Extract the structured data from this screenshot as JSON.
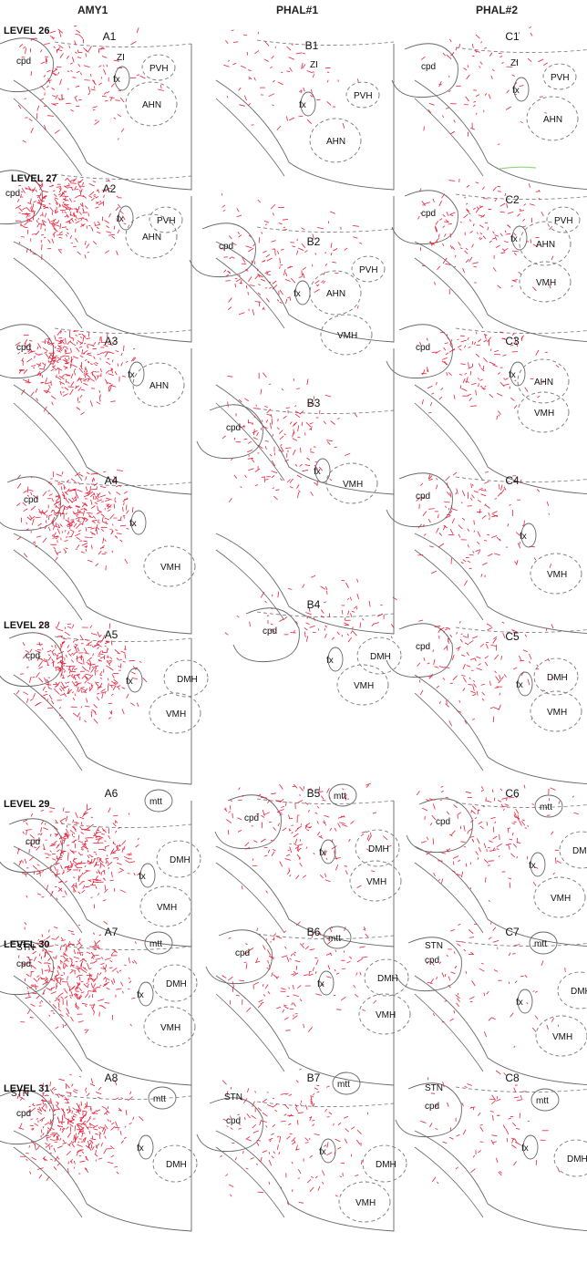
{
  "headers": [
    "AMY1",
    "PHAL#1",
    "PHAL#2"
  ],
  "level_labels": [
    {
      "text": "LEVEL 26",
      "row": 0
    },
    {
      "text": "LEVEL 27",
      "row": 1
    },
    {
      "text": "LEVEL 28",
      "row": 4
    },
    {
      "text": "LEVEL 29",
      "row": 5
    },
    {
      "text": "LEVEL 30",
      "row": 6
    },
    {
      "text": "LEVEL 31",
      "row": 7
    }
  ],
  "colors": {
    "fiber": "#e8203a",
    "outline": "#666666",
    "dashed": "#777777",
    "label": "#111111",
    "artifact": "#8fd67a"
  },
  "panels": [
    {
      "id": "A1",
      "col": 0,
      "row": 0,
      "density": "medium",
      "regions": [
        "cpd",
        "ZI",
        "PVH",
        "fx",
        "AHN"
      ]
    },
    {
      "id": "B1",
      "col": 1,
      "row": 0,
      "density": "low",
      "regions": [
        "ZI",
        "PVH",
        "fx",
        "AHN"
      ]
    },
    {
      "id": "C1",
      "col": 2,
      "row": 0,
      "density": "low",
      "regions": [
        "cpd",
        "ZI",
        "PVH",
        "fx",
        "AHN"
      ]
    },
    {
      "id": "A2",
      "col": 0,
      "row": 1,
      "density": "high",
      "regions": [
        "cpd",
        "fx",
        "PVH",
        "AHN"
      ]
    },
    {
      "id": "B2",
      "col": 1,
      "row": 1,
      "density": "medium",
      "regions": [
        "cpd",
        "PVH",
        "fx",
        "AHN",
        "VMH"
      ]
    },
    {
      "id": "C2",
      "col": 2,
      "row": 1,
      "density": "medium",
      "regions": [
        "cpd",
        "PVH",
        "fx",
        "AHN",
        "VMH"
      ]
    },
    {
      "id": "A3",
      "col": 0,
      "row": 2,
      "density": "high",
      "regions": [
        "cpd",
        "fx",
        "AHN"
      ]
    },
    {
      "id": "B3",
      "col": 1,
      "row": 2,
      "density": "medium",
      "regions": [
        "cpd",
        "fx",
        "VMH"
      ]
    },
    {
      "id": "C3",
      "col": 2,
      "row": 2,
      "density": "medium",
      "regions": [
        "cpd",
        "fx",
        "AHN",
        "VMH"
      ]
    },
    {
      "id": "A4",
      "col": 0,
      "row": 3,
      "density": "high",
      "regions": [
        "cpd",
        "fx",
        "VMH"
      ]
    },
    {
      "id": "B4",
      "col": 1,
      "row": 3,
      "density": "medium",
      "regions": [
        "cpd",
        "fx",
        "DMH",
        "VMH"
      ]
    },
    {
      "id": "C4",
      "col": 2,
      "row": 3,
      "density": "medium",
      "regions": [
        "cpd",
        "fx",
        "VMH"
      ]
    },
    {
      "id": "A5",
      "col": 0,
      "row": 4,
      "density": "high",
      "regions": [
        "cpd",
        "fx",
        "DMH",
        "VMH"
      ]
    },
    {
      "id": "C5",
      "col": 2,
      "row": 4,
      "density": "medium",
      "regions": [
        "cpd",
        "fx",
        "DMH",
        "VMH"
      ]
    },
    {
      "id": "A6",
      "col": 0,
      "row": 5,
      "density": "high",
      "regions": [
        "mtt",
        "cpd",
        "DMH",
        "fx",
        "VMH"
      ]
    },
    {
      "id": "B5",
      "col": 1,
      "row": 5,
      "density": "medium",
      "regions": [
        "mtt",
        "cpd",
        "fx",
        "DMH",
        "VMH"
      ]
    },
    {
      "id": "C6",
      "col": 2,
      "row": 5,
      "density": "medium",
      "regions": [
        "mtt",
        "cpd",
        "fx",
        "DMH",
        "VMH"
      ]
    },
    {
      "id": "A7",
      "col": 0,
      "row": 6,
      "density": "high",
      "regions": [
        "STN",
        "mtt",
        "cpd",
        "fx",
        "DMH",
        "VMH"
      ]
    },
    {
      "id": "B6",
      "col": 1,
      "row": 6,
      "density": "medium",
      "regions": [
        "mtt",
        "cpd",
        "fx",
        "DMH",
        "VMH"
      ]
    },
    {
      "id": "C7",
      "col": 2,
      "row": 6,
      "density": "low",
      "regions": [
        "STN",
        "mtt",
        "cpd",
        "fx",
        "DMH",
        "VMH"
      ]
    },
    {
      "id": "A8",
      "col": 0,
      "row": 7,
      "density": "high",
      "regions": [
        "STN",
        "mtt",
        "cpd",
        "fx",
        "DMH"
      ]
    },
    {
      "id": "B7",
      "col": 1,
      "row": 7,
      "density": "medium",
      "regions": [
        "STN",
        "mtt",
        "cpd",
        "fx",
        "DMH",
        "VMH"
      ]
    },
    {
      "id": "C8",
      "col": 2,
      "row": 7,
      "density": "low",
      "regions": [
        "STN",
        "mtt",
        "cpd",
        "fx",
        "DMH"
      ]
    }
  ]
}
